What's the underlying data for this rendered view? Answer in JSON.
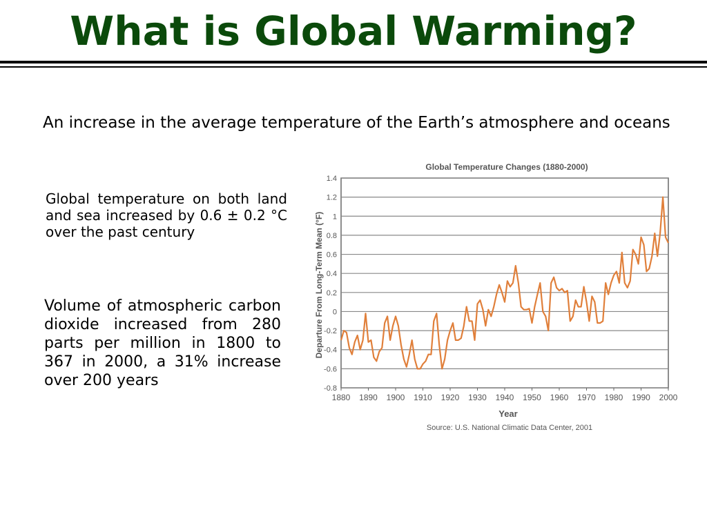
{
  "slide": {
    "title": "What is Global Warming?",
    "intro": "An increase in the average temperature of the Earth’s atmosphere and oceans",
    "point1": "Global temperature on both land and sea increased by 0.6 ± 0.2 °C over the past century",
    "point2": "Volume of atmospheric carbon dioxide increased from 280 parts per million in 1800 to 367 in 2000, a 31% increase over 200 years"
  },
  "colors": {
    "title": "#0b4a0b",
    "series": "#e07f3a",
    "gridline": "#888888",
    "axis_text": "#555555"
  },
  "chart_data": {
    "type": "line",
    "title": "Global Temperature Changes (1880-2000)",
    "xlabel": "Year",
    "ylabel": "Departure From Long-Term Mean (°F)",
    "source": "Source: U.S. National Climatic Data Center, 2001",
    "xlim": [
      1880,
      2000
    ],
    "ylim": [
      -0.8,
      1.4
    ],
    "xticks": [
      1880,
      1890,
      1900,
      1910,
      1920,
      1930,
      1940,
      1950,
      1960,
      1970,
      1980,
      1990,
      2000
    ],
    "yticks": [
      -0.8,
      -0.6,
      -0.4,
      -0.2,
      0,
      0.2,
      0.4,
      0.6,
      0.8,
      1,
      1.2,
      1.4
    ],
    "ytick_labels": [
      "-0.8",
      "-0.6",
      "-0.4",
      "-0.2",
      "0",
      "0.2",
      "0.4",
      "0.6",
      "0.8",
      "1",
      "1.2",
      "1.4"
    ],
    "grid": true,
    "series": [
      {
        "x": [
          1880,
          1881,
          1882,
          1883,
          1884,
          1885,
          1886,
          1887,
          1888,
          1889,
          1890,
          1891,
          1892,
          1893,
          1894,
          1895,
          1896,
          1897,
          1898,
          1899,
          1900,
          1901,
          1902,
          1903,
          1904,
          1905,
          1906,
          1907,
          1908,
          1909,
          1910,
          1911,
          1912,
          1913,
          1914,
          1915,
          1916,
          1917,
          1918,
          1919,
          1920,
          1921,
          1922,
          1923,
          1924,
          1925,
          1926,
          1927,
          1928,
          1929,
          1930,
          1931,
          1932,
          1933,
          1934,
          1935,
          1936,
          1937,
          1938,
          1939,
          1940,
          1941,
          1942,
          1943,
          1944,
          1945,
          1946,
          1947,
          1948,
          1949,
          1950,
          1951,
          1952,
          1953,
          1954,
          1955,
          1956,
          1957,
          1958,
          1959,
          1960,
          1961,
          1962,
          1963,
          1964,
          1965,
          1966,
          1967,
          1968,
          1969,
          1970,
          1971,
          1972,
          1973,
          1974,
          1975,
          1976,
          1977,
          1978,
          1979,
          1980,
          1981,
          1982,
          1983,
          1984,
          1985,
          1986,
          1987,
          1988,
          1989,
          1990,
          1991,
          1992,
          1993,
          1994,
          1995,
          1996,
          1997,
          1998,
          1999,
          2000
        ],
        "values": [
          -0.3,
          -0.2,
          -0.22,
          -0.38,
          -0.45,
          -0.32,
          -0.25,
          -0.4,
          -0.3,
          -0.02,
          -0.32,
          -0.3,
          -0.48,
          -0.52,
          -0.42,
          -0.38,
          -0.12,
          -0.05,
          -0.3,
          -0.15,
          -0.05,
          -0.15,
          -0.35,
          -0.5,
          -0.58,
          -0.45,
          -0.3,
          -0.5,
          -0.6,
          -0.6,
          -0.55,
          -0.52,
          -0.45,
          -0.45,
          -0.1,
          -0.02,
          -0.35,
          -0.6,
          -0.5,
          -0.3,
          -0.2,
          -0.12,
          -0.3,
          -0.3,
          -0.28,
          -0.15,
          0.05,
          -0.1,
          -0.1,
          -0.3,
          0.08,
          0.12,
          0.02,
          -0.15,
          0.02,
          -0.05,
          0.05,
          0.18,
          0.28,
          0.2,
          0.1,
          0.32,
          0.26,
          0.3,
          0.48,
          0.3,
          0.05,
          0.02,
          0.02,
          0.03,
          -0.12,
          0.05,
          0.18,
          0.3,
          0.0,
          -0.05,
          -0.2,
          0.3,
          0.36,
          0.25,
          0.22,
          0.24,
          0.2,
          0.22,
          -0.1,
          -0.05,
          0.12,
          0.05,
          0.05,
          0.26,
          0.1,
          -0.1,
          0.16,
          0.1,
          -0.12,
          -0.12,
          -0.1,
          0.3,
          0.18,
          0.3,
          0.38,
          0.42,
          0.3,
          0.62,
          0.3,
          0.25,
          0.32,
          0.65,
          0.6,
          0.5,
          0.78,
          0.7,
          0.42,
          0.45,
          0.58,
          0.82,
          0.58,
          0.82,
          1.2,
          0.78,
          0.72
        ]
      }
    ]
  }
}
